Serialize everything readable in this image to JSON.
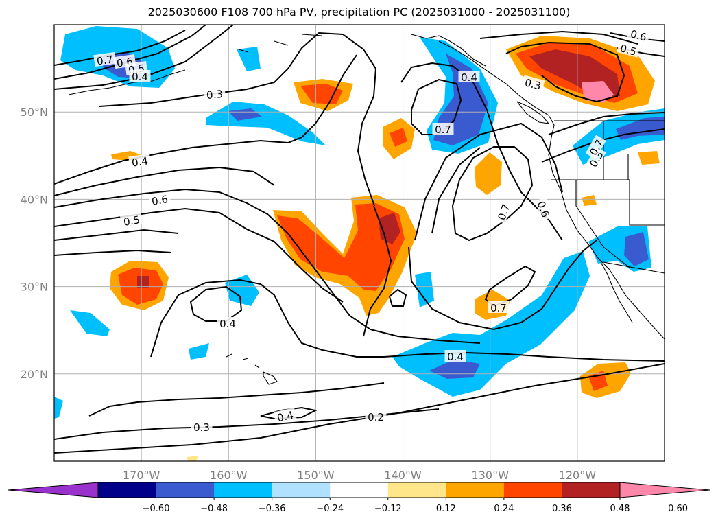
{
  "chart_data": {
    "type": "contour-map",
    "title": "2025030600 F108 700 hPa PV, precipitation PC (2025031000 - 2025031100)",
    "x_ticks": [
      "170°W",
      "160°W",
      "150°W",
      "140°W",
      "130°W",
      "120°W"
    ],
    "y_ticks": [
      "50°N",
      "40°N",
      "30°N",
      "20°N"
    ],
    "lon_range": [
      -180,
      -110
    ],
    "lat_range": [
      10,
      60
    ],
    "grid": true,
    "colorbar": {
      "ticks": [
        "−0.60",
        "−0.48",
        "−0.36",
        "−0.24",
        "−0.12",
        "0.12",
        "0.24",
        "0.36",
        "0.48",
        "0.60"
      ],
      "levels": [
        -0.6,
        -0.48,
        -0.36,
        -0.24,
        -0.12,
        0.12,
        0.24,
        0.36,
        0.48,
        0.6
      ],
      "colors": [
        "#9932cc",
        "#00008b",
        "#3a5bd0",
        "#00bfff",
        "#b0e2ff",
        "#ffffff",
        "#ffe68a",
        "#ffa500",
        "#ff4500",
        "#b22222",
        "#ff88aa"
      ],
      "extend": "both"
    },
    "contour_labels": [
      "0.7",
      "0.6",
      "0.5",
      "0.4",
      "0.3",
      "0.4",
      "0.6",
      "0.5",
      "0.4",
      "0.3",
      "0.4",
      "0.2",
      "0.4",
      "0.7",
      "0.7",
      "0.7",
      "0.6",
      "0.4",
      "0.3",
      "0.6",
      "0.5",
      "0.3",
      "0.7"
    ]
  }
}
